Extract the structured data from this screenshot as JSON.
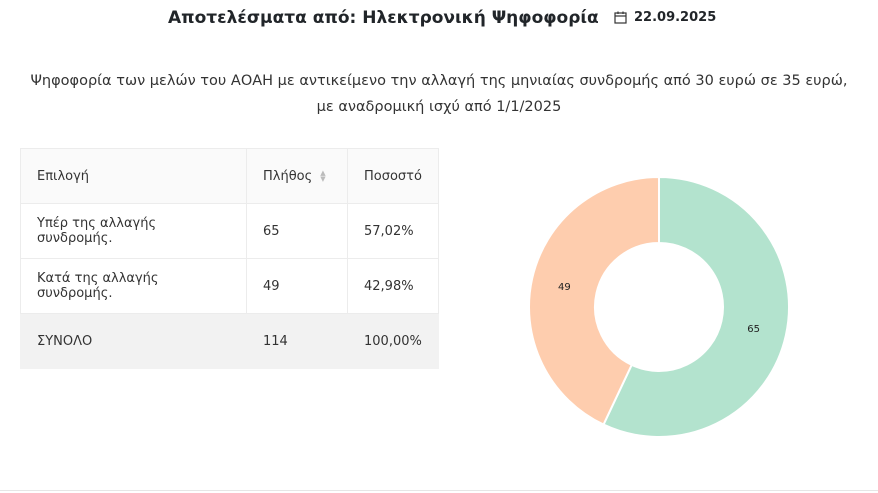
{
  "header": {
    "title": "Αποτελέσματα από: Ηλεκτρονική Ψηφοφορία",
    "date": "22.09.2025",
    "date_icon": "calendar-icon"
  },
  "description": [
    "Ψηφοφορία των μελών του ΑΟΑΗ με αντικείμενο την αλλαγή της μηνιαίας συνδρομής από 30 ευρώ σε 35 ευρώ,",
    "με αναδρομική ισχύ από 1/1/2025"
  ],
  "table": {
    "headers": [
      "Επιλογή",
      "Πλήθος",
      "Ποσοστό"
    ],
    "rows": [
      [
        "Υπέρ της αλλαγής συνδρομής.",
        "65",
        "57,02%"
      ],
      [
        "Κατά της αλλαγής συνδρομής.",
        "49",
        "42,98%"
      ]
    ],
    "total": [
      "ΣΥΝΟΛΟ",
      "114",
      "100,00%"
    ]
  },
  "chart_data": {
    "type": "pie",
    "donut": true,
    "categories": [
      "Υπέρ της αλλαγής συνδρομής.",
      "Κατά της αλλαγής συνδρομής."
    ],
    "values": [
      65,
      49
    ],
    "colors": [
      "#b3e3ce",
      "#fecdae"
    ]
  }
}
